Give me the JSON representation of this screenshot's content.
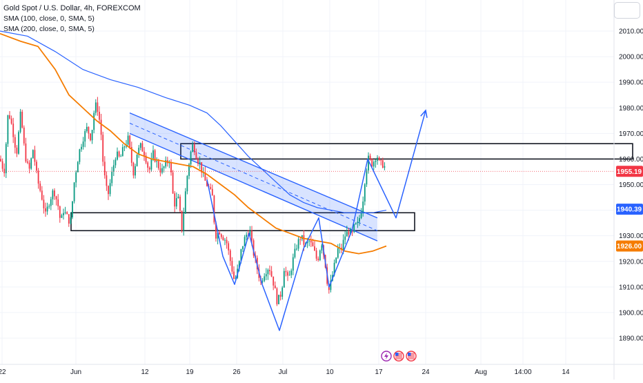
{
  "legend": {
    "title": "Gold Spot / U.S. Dollar, 4h, FOREXCOM",
    "sma1": "SMA (100, close, 0, SMA, 5)",
    "sma2": "SMA (200, close, 0, SMA, 5)"
  },
  "chart_data": {
    "type": "candlestick",
    "symbol": "Gold Spot / U.S. Dollar",
    "interval": "4h",
    "source": "FOREXCOM",
    "y_range": [
      1885,
      2016
    ],
    "y_ticks": [
      2010,
      2000,
      1990,
      1980,
      1970,
      1960,
      1950,
      1940,
      1930,
      1920,
      1910,
      1900,
      1890
    ],
    "y_tick_labels": [
      "2010.00",
      "2000.00",
      "1990.00",
      "1980.00",
      "1970.00",
      "1960.00",
      "1950.00",
      "1940.00",
      "1930.00",
      "1920.00",
      "1910.00",
      "1900.00",
      "1890.00"
    ],
    "x_ticks": [
      {
        "label": "22",
        "t": 3
      },
      {
        "label": "Jun",
        "t": 110
      },
      {
        "label": "12",
        "t": 210
      },
      {
        "label": "19",
        "t": 275
      },
      {
        "label": "26",
        "t": 343
      },
      {
        "label": "Jul",
        "t": 410
      },
      {
        "label": "10",
        "t": 478
      },
      {
        "label": "17",
        "t": 549
      },
      {
        "label": "24",
        "t": 617
      },
      {
        "label": "Aug",
        "t": 697
      },
      {
        "label": "14:00",
        "t": 758
      },
      {
        "label": "14",
        "t": 820
      }
    ],
    "price_labels": [
      {
        "text": "1955.19",
        "value": 1955.19,
        "color": "#f23645"
      },
      {
        "text": "1940.39",
        "value": 1940.39,
        "color": "#2962ff"
      },
      {
        "text": "1926.00",
        "value": 1926.0,
        "color": "#f57c00"
      }
    ],
    "price_path": [
      [
        0,
        1960
      ],
      [
        6,
        1955
      ],
      [
        12,
        1979
      ],
      [
        18,
        1972
      ],
      [
        24,
        1962
      ],
      [
        30,
        1978
      ],
      [
        36,
        1962
      ],
      [
        42,
        1955
      ],
      [
        48,
        1964
      ],
      [
        54,
        1952
      ],
      [
        60,
        1946
      ],
      [
        66,
        1938
      ],
      [
        72,
        1944
      ],
      [
        78,
        1948
      ],
      [
        84,
        1942
      ],
      [
        88,
        1935
      ],
      [
        92,
        1940
      ],
      [
        96,
        1938
      ],
      [
        102,
        1935
      ],
      [
        108,
        1952
      ],
      [
        114,
        1962
      ],
      [
        120,
        1968
      ],
      [
        126,
        1972
      ],
      [
        132,
        1968
      ],
      [
        136,
        1978
      ],
      [
        140,
        1982
      ],
      [
        146,
        1972
      ],
      [
        150,
        1956
      ],
      [
        156,
        1945
      ],
      [
        162,
        1954
      ],
      [
        168,
        1962
      ],
      [
        174,
        1960
      ],
      [
        180,
        1965
      ],
      [
        186,
        1968
      ],
      [
        190,
        1960
      ],
      [
        194,
        1954
      ],
      [
        198,
        1962
      ],
      [
        204,
        1965
      ],
      [
        210,
        1962
      ],
      [
        216,
        1955
      ],
      [
        222,
        1962
      ],
      [
        228,
        1958
      ],
      [
        234,
        1955
      ],
      [
        240,
        1958
      ],
      [
        246,
        1960
      ],
      [
        252,
        1942
      ],
      [
        258,
        1945
      ],
      [
        264,
        1932
      ],
      [
        268,
        1945
      ],
      [
        272,
        1955
      ],
      [
        276,
        1962
      ],
      [
        280,
        1966
      ],
      [
        286,
        1960
      ],
      [
        290,
        1958
      ],
      [
        296,
        1952
      ],
      [
        302,
        1949
      ],
      [
        308,
        1945
      ],
      [
        312,
        1930
      ],
      [
        318,
        1932
      ],
      [
        322,
        1930
      ],
      [
        328,
        1928
      ],
      [
        334,
        1920
      ],
      [
        340,
        1912
      ],
      [
        346,
        1918
      ],
      [
        350,
        1925
      ],
      [
        356,
        1930
      ],
      [
        362,
        1932
      ],
      [
        366,
        1925
      ],
      [
        372,
        1918
      ],
      [
        378,
        1912
      ],
      [
        384,
        1916
      ],
      [
        390,
        1918
      ],
      [
        396,
        1912
      ],
      [
        402,
        1904
      ],
      [
        408,
        1908
      ],
      [
        412,
        1918
      ],
      [
        418,
        1912
      ],
      [
        424,
        1920
      ],
      [
        430,
        1926
      ],
      [
        436,
        1930
      ],
      [
        442,
        1926
      ],
      [
        448,
        1928
      ],
      [
        454,
        1925
      ],
      [
        460,
        1920
      ],
      [
        466,
        1928
      ],
      [
        472,
        1918
      ],
      [
        476,
        1908
      ],
      [
        480,
        1912
      ],
      [
        486,
        1920
      ],
      [
        490,
        1925
      ],
      [
        494,
        1924
      ],
      [
        500,
        1930
      ],
      [
        506,
        1932
      ],
      [
        510,
        1930
      ],
      [
        514,
        1934
      ],
      [
        518,
        1934
      ],
      [
        522,
        1938
      ],
      [
        526,
        1944
      ],
      [
        530,
        1955
      ],
      [
        534,
        1960
      ],
      [
        540,
        1958
      ],
      [
        546,
        1962
      ],
      [
        550,
        1958
      ],
      [
        556,
        1958
      ],
      [
        560,
        1955
      ]
    ],
    "sma_blue": [
      [
        0,
        2010
      ],
      [
        40,
        2008
      ],
      [
        80,
        2002
      ],
      [
        120,
        1995
      ],
      [
        160,
        1991
      ],
      [
        200,
        1988
      ],
      [
        240,
        1984
      ],
      [
        275,
        1981
      ],
      [
        300,
        1978
      ],
      [
        320,
        1973
      ],
      [
        340,
        1967
      ],
      [
        360,
        1961
      ],
      [
        380,
        1956
      ],
      [
        400,
        1951
      ],
      [
        420,
        1946
      ],
      [
        440,
        1943
      ],
      [
        460,
        1941
      ],
      [
        480,
        1940
      ],
      [
        500,
        1939
      ],
      [
        520,
        1939
      ],
      [
        540,
        1939
      ],
      [
        560,
        1940
      ]
    ],
    "sma_orange": [
      [
        0,
        2009
      ],
      [
        30,
        2006
      ],
      [
        55,
        2004
      ],
      [
        80,
        1995
      ],
      [
        100,
        1985
      ],
      [
        120,
        1980
      ],
      [
        140,
        1975
      ],
      [
        160,
        1971
      ],
      [
        180,
        1966
      ],
      [
        200,
        1962
      ],
      [
        220,
        1960
      ],
      [
        240,
        1959
      ],
      [
        260,
        1958
      ],
      [
        280,
        1957
      ],
      [
        300,
        1954
      ],
      [
        320,
        1950
      ],
      [
        340,
        1946
      ],
      [
        360,
        1941
      ],
      [
        380,
        1937
      ],
      [
        400,
        1933
      ],
      [
        420,
        1931
      ],
      [
        440,
        1929
      ],
      [
        460,
        1928
      ],
      [
        480,
        1927
      ],
      [
        500,
        1924
      ],
      [
        520,
        1923
      ],
      [
        540,
        1924
      ],
      [
        560,
        1926
      ]
    ],
    "channel": {
      "upper": [
        [
          188,
          1978
        ],
        [
          547,
          1937
        ]
      ],
      "lower": [
        [
          188,
          1970
        ],
        [
          547,
          1928
        ]
      ],
      "mid": [
        [
          188,
          1974
        ],
        [
          547,
          1932
        ]
      ]
    },
    "zones": [
      {
        "t0": 262,
        "t1": 917,
        "top": 1966,
        "bottom": 1960
      },
      {
        "t0": 103,
        "t1": 601,
        "top": 1939,
        "bottom": 1932
      }
    ],
    "wave_path": [
      [
        300,
        1952
      ],
      [
        323,
        1922
      ],
      [
        340,
        1911
      ],
      [
        361,
        1931
      ],
      [
        380,
        1911
      ],
      [
        405,
        1893
      ],
      [
        440,
        1925
      ],
      [
        462,
        1937
      ],
      [
        477,
        1910
      ],
      [
        510,
        1932
      ],
      [
        533,
        1960
      ],
      [
        574,
        1937
      ],
      [
        617,
        1979
      ]
    ],
    "event_icons": [
      {
        "t": 560,
        "kind": "flash",
        "color": "#9c27b0"
      },
      {
        "t": 578,
        "kind": "flag-us",
        "color": "#f23645"
      },
      {
        "t": 596,
        "kind": "flag-us",
        "color": "#f23645"
      }
    ],
    "colors": {
      "up": "#089981",
      "down": "#f23645",
      "sma_blue": "#2962ff",
      "sma_orange": "#f57c00",
      "drawing": "#2962ff",
      "grid": "#f0f3fa",
      "text": "#131722"
    }
  }
}
